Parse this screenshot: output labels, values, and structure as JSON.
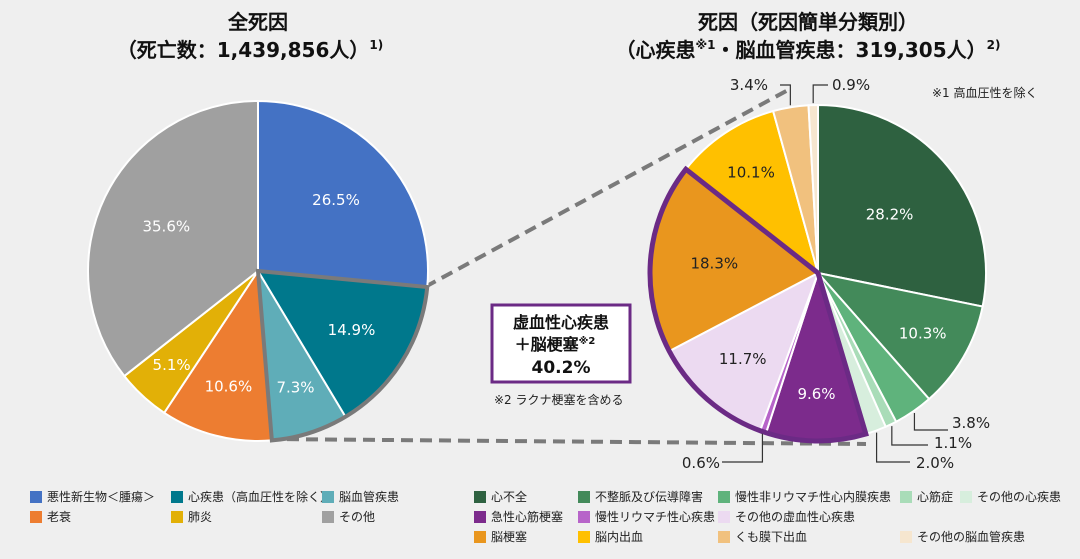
{
  "chart_data": [
    {
      "type": "pie",
      "title": "全死因",
      "subtitle": "（死亡数：1,439,856人）",
      "subtitle_note": "1)",
      "slices": [
        {
          "label": "悪性新生物＜腫瘍＞",
          "value": 26.5,
          "label_text": "26.5%",
          "color": "#4472c4"
        },
        {
          "label": "心疾患（高血圧性を除く）",
          "value": 14.9,
          "label_text": "14.9%",
          "color": "#00788c"
        },
        {
          "label": "脳血管疾患",
          "value": 7.3,
          "label_text": "7.3%",
          "color": "#5fadb8"
        },
        {
          "label": "老衰",
          "value": 10.6,
          "label_text": "10.6%",
          "color": "#ed7d31"
        },
        {
          "label": "肺炎",
          "value": 5.1,
          "label_text": "5.1%",
          "color": "#e2b007"
        },
        {
          "label": "その他",
          "value": 35.6,
          "label_text": "35.6%",
          "color": "#a0a0a0"
        }
      ]
    },
    {
      "type": "pie",
      "title": "死因（死因簡単分類別）",
      "subtitle_main": "（心疾患",
      "subtitle_sup": "※1",
      "subtitle_rest": "・脳血管疾患：319,305人）",
      "subtitle_note": "2)",
      "slices": [
        {
          "label": "心不全",
          "value": 28.2,
          "label_text": "28.2%",
          "color": "#2e6140"
        },
        {
          "label": "不整脈及び伝導障害",
          "value": 10.3,
          "label_text": "10.3%",
          "color": "#438a5a"
        },
        {
          "label": "慢性非リウマチ性心内膜疾患",
          "value": 3.8,
          "label_text": "3.8%",
          "color": "#5fb37c"
        },
        {
          "label": "心筋症",
          "value": 1.1,
          "label_text": "1.1%",
          "color": "#a9dcb8"
        },
        {
          "label": "その他の心疾患",
          "value": 2.0,
          "label_text": "2.0%",
          "color": "#d7eedd"
        },
        {
          "label": "急性心筋梗塞",
          "value": 9.6,
          "label_text": "9.6%",
          "color": "#7c2b8c"
        },
        {
          "label": "慢性リウマチ性心疾患",
          "value": 0.6,
          "label_text": "0.6%",
          "color": "#b764c9"
        },
        {
          "label": "その他の虚血性心疾患",
          "value": 11.7,
          "label_text": "11.7%",
          "color": "#ecdaf1"
        },
        {
          "label": "脳梗塞",
          "value": 18.3,
          "label_text": "18.3%",
          "color": "#e9961e"
        },
        {
          "label": "脳内出血",
          "value": 10.1,
          "label_text": "10.1%",
          "color": "#ffc000"
        },
        {
          "label": "くも膜下出血",
          "value": 3.4,
          "label_text": "3.4%",
          "color": "#f1c17e"
        },
        {
          "label": "その他の脳血管疾患",
          "value": 0.9,
          "label_text": "0.9%",
          "color": "#f6e6cf"
        }
      ],
      "note": "※1 高血圧性を除く"
    }
  ],
  "callout": {
    "line1": "虚血性心疾患",
    "line2": "＋脳梗塞",
    "line2_sup": "※2",
    "value": "40.2%",
    "note": "※2 ラクナ梗塞を含める",
    "border_color": "#6b2a85"
  }
}
